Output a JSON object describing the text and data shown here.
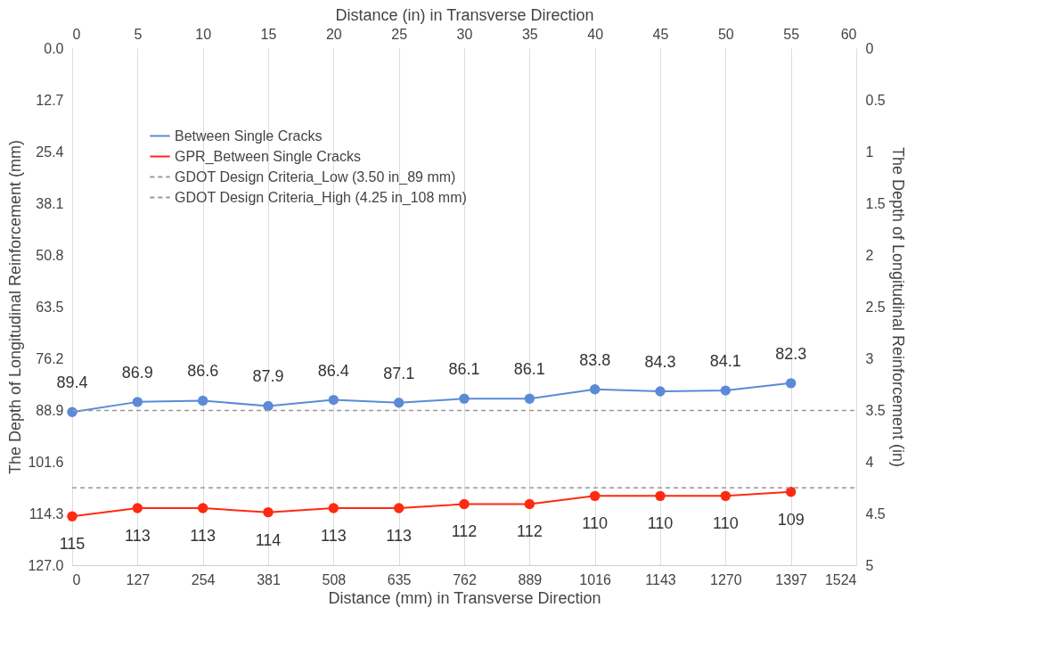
{
  "chart_data": {
    "type": "line",
    "xlabel": "Distance (mm) in Transverse  Direction",
    "x2label": "Distance (in) in Transverse Direction",
    "ylabel": "The Depth of Longitudinal Reinforcement (mm)",
    "y2label": "The Depth of Longitudinal Reinforcement (in)",
    "x": [
      0,
      127,
      254,
      381,
      508,
      635,
      762,
      889,
      1016,
      1143,
      1270,
      1397
    ],
    "series": [
      {
        "name": "Between Single Cracks",
        "color": "#5b8bd6",
        "values": [
          89.4,
          86.9,
          86.6,
          87.9,
          86.4,
          87.1,
          86.1,
          86.1,
          83.8,
          84.3,
          84.1,
          82.3
        ]
      },
      {
        "name": "GPR_Between Single Cracks",
        "color": "#ff2a10",
        "values": [
          115,
          113,
          113,
          114,
          113,
          113,
          112,
          112,
          110,
          110,
          110,
          109
        ]
      }
    ],
    "ref_lines": [
      {
        "axis": "y",
        "value": 89,
        "label": "GDOT Design Criteria_Low (3.50 in_89 mm)",
        "color": "#999999",
        "line_style": "dashed"
      },
      {
        "axis": "y",
        "value": 108,
        "label": "GDOT Design Criteria_High (4.25 in_108 mm)",
        "color": "#999999",
        "line_style": "dashed"
      }
    ],
    "xlim": [
      0,
      1524
    ],
    "xticks": [
      0,
      127,
      254,
      381,
      508,
      635,
      762,
      889,
      1016,
      1143,
      1270,
      1397,
      1524
    ],
    "x2lim": [
      0,
      60
    ],
    "x2ticks": [
      0,
      5,
      10,
      15,
      20,
      25,
      30,
      35,
      40,
      45,
      50,
      55,
      60
    ],
    "ylim": [
      127,
      0
    ],
    "yticks": [
      {
        "value": 0,
        "label": "0.0"
      },
      12.7,
      25.4,
      38.1,
      50.8,
      63.5,
      76.2,
      88.9,
      101.6,
      114.3,
      {
        "value": 127,
        "label": "127.0"
      }
    ],
    "y2lim": [
      5,
      0
    ],
    "y2ticks": [
      0,
      0.5,
      1,
      1.5,
      2,
      2.5,
      3,
      3.5,
      4,
      4.5,
      5
    ],
    "grid": "x",
    "legend": "top left",
    "marker": "circle",
    "data_labels": true
  }
}
